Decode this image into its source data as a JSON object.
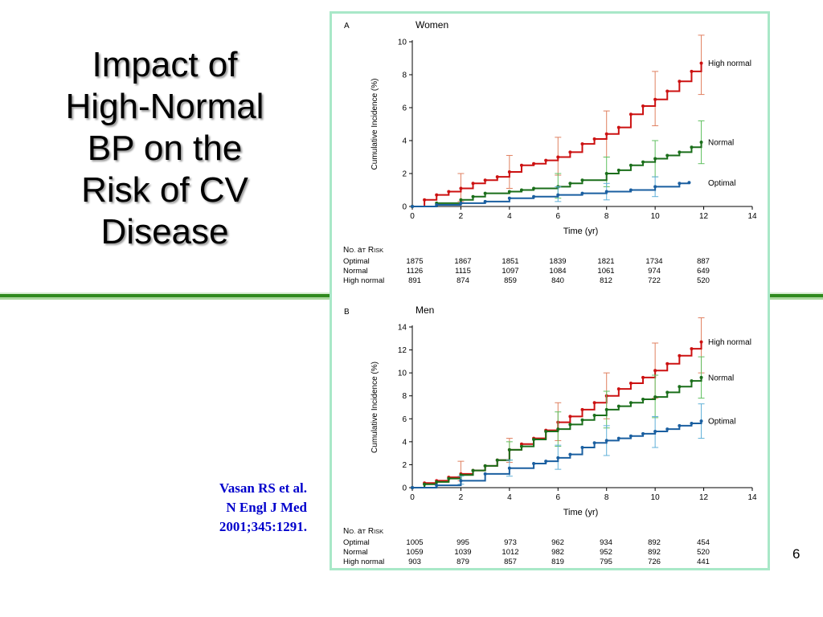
{
  "slide": {
    "title_lines": [
      "Impact of",
      "High-Normal",
      "BP on the",
      "Risk of CV",
      "Disease"
    ],
    "citation_lines": [
      "Vasan RS et al.",
      "N Engl J Med",
      "2001;345:1291."
    ],
    "slide_number": "6"
  },
  "colors": {
    "high_normal": "#cc1111",
    "normal": "#1a6e1a",
    "optimal": "#1a5fa0",
    "errbar_high_normal": "#e08060",
    "errbar_normal": "#60c060",
    "errbar_optimal": "#60b0d8",
    "frame": "#a9e8c8",
    "band": "#2f8a1e"
  },
  "chart_data": [
    {
      "type": "line",
      "panel_letter": "A",
      "title": "Women",
      "xlabel": "Time (yr)",
      "ylabel": "Cumulative Incidence (%)",
      "xlim": [
        0,
        14
      ],
      "ylim": [
        0,
        10
      ],
      "x_ticks": [
        0,
        2,
        4,
        6,
        8,
        10,
        12,
        14
      ],
      "y_ticks": [
        0,
        2,
        4,
        6,
        8,
        10
      ],
      "series": [
        {
          "name": "High normal",
          "color_key": "high_normal",
          "points": [
            [
              0,
              0
            ],
            [
              0.5,
              0.4
            ],
            [
              1,
              0.7
            ],
            [
              1.5,
              0.9
            ],
            [
              2,
              1.1
            ],
            [
              2.5,
              1.4
            ],
            [
              3,
              1.6
            ],
            [
              3.5,
              1.8
            ],
            [
              4,
              2.1
            ],
            [
              4.5,
              2.5
            ],
            [
              5,
              2.6
            ],
            [
              5.5,
              2.8
            ],
            [
              6,
              3.0
            ],
            [
              6.5,
              3.3
            ],
            [
              7,
              3.8
            ],
            [
              7.5,
              4.1
            ],
            [
              8,
              4.4
            ],
            [
              8.5,
              4.8
            ],
            [
              9,
              5.6
            ],
            [
              9.5,
              6.1
            ],
            [
              10,
              6.5
            ],
            [
              10.5,
              7.0
            ],
            [
              11,
              7.6
            ],
            [
              11.5,
              8.2
            ],
            [
              11.9,
              8.7
            ]
          ],
          "error_bars": [
            [
              2,
              1.1,
              0.3,
              2.0
            ],
            [
              4,
              2.1,
              1.1,
              3.1
            ],
            [
              6,
              3.0,
              1.9,
              4.2
            ],
            [
              8,
              4.4,
              3.0,
              5.8
            ],
            [
              10,
              6.5,
              4.9,
              8.2
            ],
            [
              11.9,
              8.7,
              6.8,
              10.4
            ]
          ]
        },
        {
          "name": "Normal",
          "color_key": "normal",
          "points": [
            [
              0,
              0
            ],
            [
              1,
              0.2
            ],
            [
              2,
              0.4
            ],
            [
              2.5,
              0.6
            ],
            [
              3,
              0.8
            ],
            [
              4,
              0.9
            ],
            [
              4.5,
              1.0
            ],
            [
              5,
              1.1
            ],
            [
              6,
              1.2
            ],
            [
              6.5,
              1.4
            ],
            [
              7,
              1.6
            ],
            [
              8,
              2.0
            ],
            [
              8.5,
              2.2
            ],
            [
              9,
              2.5
            ],
            [
              9.5,
              2.7
            ],
            [
              10,
              2.9
            ],
            [
              10.5,
              3.1
            ],
            [
              11,
              3.3
            ],
            [
              11.5,
              3.6
            ],
            [
              11.9,
              3.9
            ]
          ],
          "error_bars": [
            [
              6,
              1.2,
              0.5,
              2.0
            ],
            [
              8,
              2.0,
              1.2,
              3.0
            ],
            [
              10,
              2.9,
              1.8,
              4.0
            ],
            [
              11.9,
              3.9,
              2.6,
              5.2
            ]
          ]
        },
        {
          "name": "Optimal",
          "color_key": "optimal",
          "points": [
            [
              0,
              0
            ],
            [
              1,
              0.1
            ],
            [
              2,
              0.2
            ],
            [
              3,
              0.3
            ],
            [
              4,
              0.5
            ],
            [
              5,
              0.6
            ],
            [
              6,
              0.7
            ],
            [
              7,
              0.8
            ],
            [
              8,
              0.9
            ],
            [
              9,
              1.0
            ],
            [
              10,
              1.2
            ],
            [
              11,
              1.4
            ],
            [
              11.4,
              1.45
            ]
          ],
          "error_bars": [
            [
              6,
              0.7,
              0.3,
              1.2
            ],
            [
              8,
              0.9,
              0.4,
              1.4
            ],
            [
              10,
              1.2,
              0.6,
              1.8
            ]
          ]
        }
      ],
      "risk_table": {
        "header": "No. at Risk",
        "rows": [
          {
            "label": "Optimal",
            "values": [
              "1875",
              "1867",
              "1851",
              "1839",
              "1821",
              "1734",
              "887"
            ]
          },
          {
            "label": "Normal",
            "values": [
              "1126",
              "1115",
              "1097",
              "1084",
              "1061",
              "974",
              "649"
            ]
          },
          {
            "label": "High normal",
            "values": [
              "891",
              "874",
              "859",
              "840",
              "812",
              "722",
              "520"
            ]
          }
        ]
      }
    },
    {
      "type": "line",
      "panel_letter": "B",
      "title": "Men",
      "xlabel": "Time (yr)",
      "ylabel": "Cumulative Incidence (%)",
      "xlim": [
        0,
        14
      ],
      "ylim": [
        0,
        14
      ],
      "x_ticks": [
        0,
        2,
        4,
        6,
        8,
        10,
        12,
        14
      ],
      "y_ticks": [
        0,
        2,
        4,
        6,
        8,
        10,
        12,
        14
      ],
      "series": [
        {
          "name": "High normal",
          "color_key": "high_normal",
          "points": [
            [
              0,
              0
            ],
            [
              0.5,
              0.4
            ],
            [
              1,
              0.6
            ],
            [
              1.5,
              0.9
            ],
            [
              2,
              1.2
            ],
            [
              2.5,
              1.5
            ],
            [
              3,
              1.9
            ],
            [
              3.5,
              2.4
            ],
            [
              4,
              3.3
            ],
            [
              4.5,
              3.8
            ],
            [
              5,
              4.3
            ],
            [
              5.5,
              5.0
            ],
            [
              6,
              5.7
            ],
            [
              6.5,
              6.2
            ],
            [
              7,
              6.8
            ],
            [
              7.5,
              7.4
            ],
            [
              8,
              8.0
            ],
            [
              8.5,
              8.6
            ],
            [
              9,
              9.1
            ],
            [
              9.5,
              9.6
            ],
            [
              10,
              10.2
            ],
            [
              10.5,
              10.8
            ],
            [
              11,
              11.5
            ],
            [
              11.5,
              12.1
            ],
            [
              11.9,
              12.7
            ]
          ],
          "error_bars": [
            [
              2,
              1.2,
              0.6,
              2.3
            ],
            [
              4,
              3.3,
              2.2,
              4.3
            ],
            [
              6,
              5.7,
              4.1,
              7.4
            ],
            [
              8,
              8.0,
              6.0,
              10.0
            ],
            [
              10,
              10.2,
              7.8,
              12.6
            ],
            [
              11.9,
              12.7,
              10.0,
              15.4
            ]
          ]
        },
        {
          "name": "Normal",
          "color_key": "normal",
          "points": [
            [
              0,
              0
            ],
            [
              0.5,
              0.3
            ],
            [
              1,
              0.5
            ],
            [
              1.5,
              0.8
            ],
            [
              2,
              1.1
            ],
            [
              2.5,
              1.5
            ],
            [
              3,
              1.9
            ],
            [
              3.5,
              2.4
            ],
            [
              4,
              3.3
            ],
            [
              4.5,
              3.6
            ],
            [
              5,
              4.2
            ],
            [
              5.5,
              4.9
            ],
            [
              6,
              5.1
            ],
            [
              6.5,
              5.5
            ],
            [
              7,
              5.9
            ],
            [
              7.5,
              6.3
            ],
            [
              8,
              6.8
            ],
            [
              8.5,
              7.1
            ],
            [
              9,
              7.4
            ],
            [
              9.5,
              7.7
            ],
            [
              10,
              7.9
            ],
            [
              10.5,
              8.3
            ],
            [
              11,
              8.8
            ],
            [
              11.5,
              9.3
            ],
            [
              11.9,
              9.6
            ]
          ],
          "error_bars": [
            [
              4,
              3.3,
              2.4,
              4.0
            ],
            [
              6,
              5.1,
              3.6,
              6.6
            ],
            [
              8,
              6.8,
              5.2,
              8.4
            ],
            [
              10,
              7.9,
              6.1,
              9.8
            ],
            [
              11.9,
              9.6,
              7.8,
              11.4
            ]
          ]
        },
        {
          "name": "Optimal",
          "color_key": "optimal",
          "points": [
            [
              0,
              0
            ],
            [
              1,
              0.2
            ],
            [
              2,
              0.6
            ],
            [
              3,
              1.2
            ],
            [
              4,
              1.7
            ],
            [
              5,
              2.1
            ],
            [
              5.5,
              2.3
            ],
            [
              6,
              2.6
            ],
            [
              6.5,
              2.9
            ],
            [
              7,
              3.5
            ],
            [
              7.5,
              3.9
            ],
            [
              8,
              4.1
            ],
            [
              8.5,
              4.3
            ],
            [
              9,
              4.5
            ],
            [
              9.5,
              4.7
            ],
            [
              10,
              4.9
            ],
            [
              10.5,
              5.1
            ],
            [
              11,
              5.4
            ],
            [
              11.5,
              5.6
            ],
            [
              11.9,
              5.8
            ]
          ],
          "error_bars": [
            [
              2,
              0.6,
              0.3,
              1.0
            ],
            [
              4,
              1.7,
              1.0,
              2.4
            ],
            [
              6,
              2.6,
              1.6,
              3.7
            ],
            [
              8,
              4.1,
              2.8,
              5.4
            ],
            [
              10,
              4.9,
              3.5,
              6.2
            ],
            [
              11.9,
              5.8,
              4.3,
              7.3
            ]
          ]
        }
      ],
      "risk_table": {
        "header": "No. at Risk",
        "rows": [
          {
            "label": "Optimal",
            "values": [
              "1005",
              "995",
              "973",
              "962",
              "934",
              "892",
              "454"
            ]
          },
          {
            "label": "Normal",
            "values": [
              "1059",
              "1039",
              "1012",
              "982",
              "952",
              "892",
              "520"
            ]
          },
          {
            "label": "High normal",
            "values": [
              "903",
              "879",
              "857",
              "819",
              "795",
              "726",
              "441"
            ]
          }
        ]
      }
    }
  ]
}
